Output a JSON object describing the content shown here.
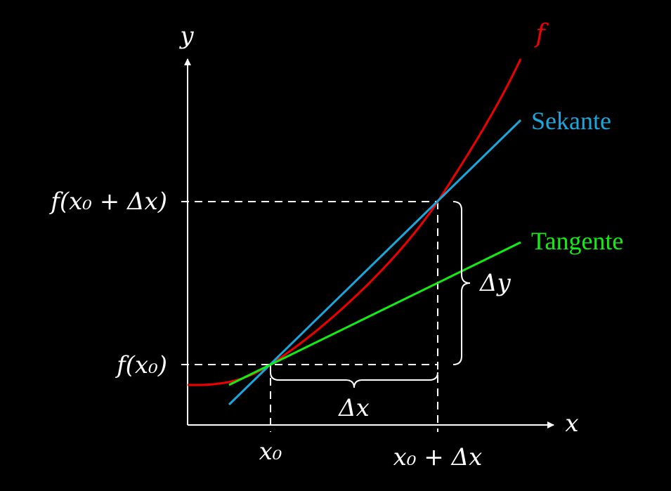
{
  "colors": {
    "background": "#000000",
    "axis": "#ffffff",
    "function": "#ee0000",
    "secant": "#1aa7dd",
    "tangent": "#11ee11",
    "guides": "#ffffff"
  },
  "axes": {
    "x_label": "x",
    "y_label": "y"
  },
  "curve": {
    "label": "f"
  },
  "secant": {
    "label": "Sekante"
  },
  "tangent": {
    "label": "Tangente"
  },
  "ticks": {
    "x0": "x₀",
    "x0_plus_dx": "x₀ + Δx",
    "fx0": "f(x₀)",
    "fx0_plus_dx": "f(x₀ + Δx)"
  },
  "braces": {
    "dx": "Δx",
    "dy": "Δy"
  }
}
